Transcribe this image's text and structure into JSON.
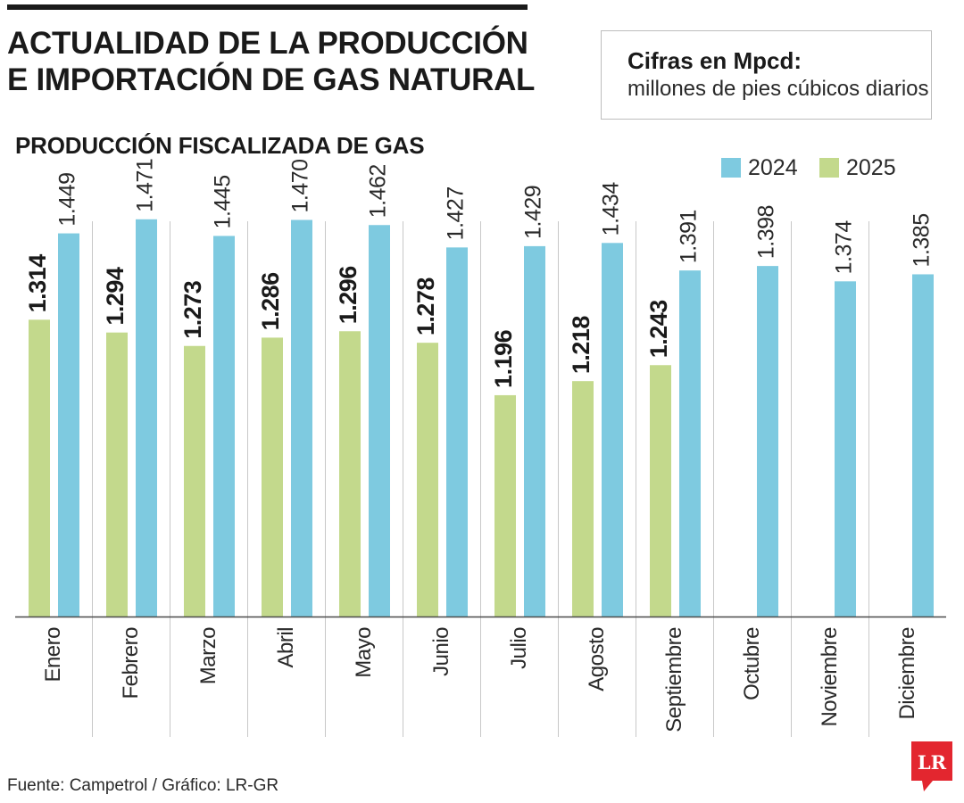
{
  "title_lines": [
    "ACTUALIDAD DE LA PRODUCCIÓN",
    "E IMPORTACIÓN DE GAS NATURAL"
  ],
  "note": {
    "heading": "Cifras en Mpcd:",
    "text": "millones de pies cúbicos diarios"
  },
  "source": "Fuente: Campetrol / Gráfico: LR-GR",
  "logo_text": "LR",
  "colors": {
    "series_2024": "#7ecae0",
    "series_2025": "#c3d98c",
    "logo": "#e3262f",
    "text": "#1a1a1a"
  },
  "chart_data": {
    "type": "bar",
    "title": "PRODUCCIÓN FISCALIZADA DE GAS",
    "categories": [
      "Enero",
      "Febrero",
      "Marzo",
      "Abril",
      "Mayo",
      "Junio",
      "Julio",
      "Agosto",
      "Septiembre",
      "Octubre",
      "Noviembre",
      "Diciembre"
    ],
    "series": [
      {
        "name": "2024",
        "color": "#7ecae0",
        "values": [
          1449,
          1471,
          1445,
          1470,
          1462,
          1427,
          1429,
          1434,
          1391,
          1398,
          1374,
          1385
        ],
        "labels": [
          "1.449",
          "1.471",
          "1.445",
          "1.470",
          "1.462",
          "1.427",
          "1.429",
          "1.434",
          "1.391",
          "1.398",
          "1.374",
          "1.385"
        ]
      },
      {
        "name": "2025",
        "color": "#c3d98c",
        "values": [
          1314,
          1294,
          1273,
          1286,
          1296,
          1278,
          1196,
          1218,
          1243,
          null,
          null,
          null
        ],
        "labels": [
          "1.314",
          "1.294",
          "1.273",
          "1.286",
          "1.296",
          "1.278",
          "1.196",
          "1.218",
          "1.243",
          null,
          null,
          null
        ]
      }
    ],
    "ylim": [
      850,
      1500
    ],
    "xlabel": "",
    "ylabel": "",
    "grid": "vertical separators between months",
    "legend_position": "top-right"
  }
}
